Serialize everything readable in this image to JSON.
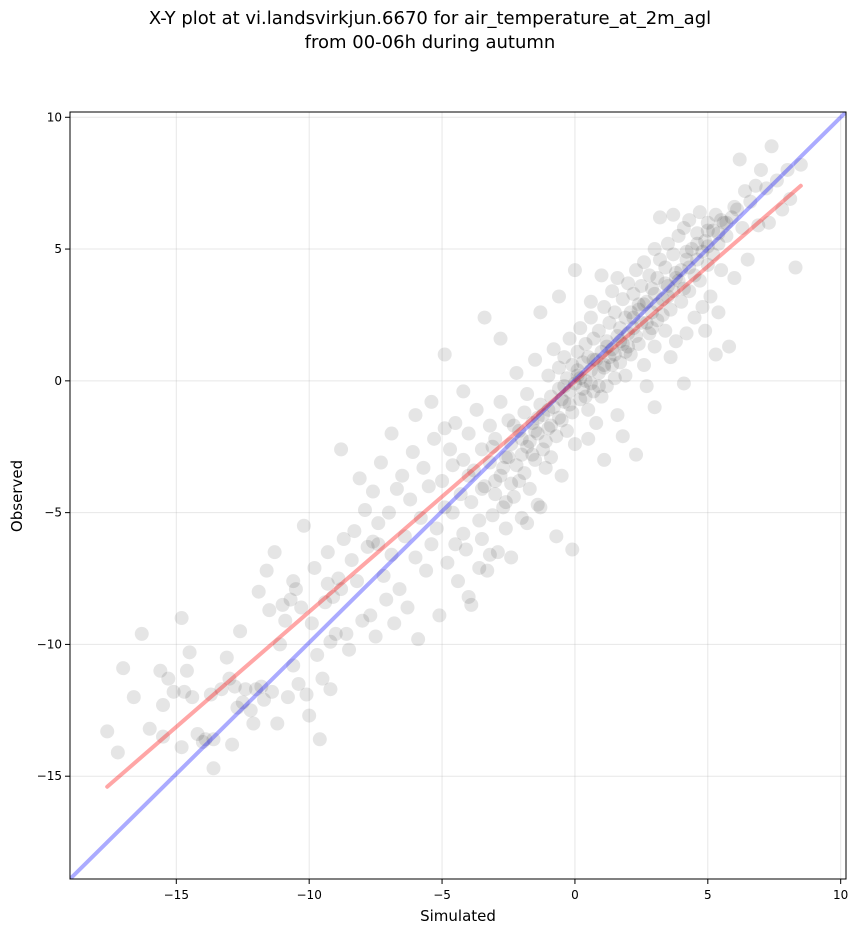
{
  "chart_data": {
    "type": "scatter",
    "title": "X-Y plot at vi.landsvirkjun.6670 for air_temperature_at_2m_agl",
    "subtitle": "from 00-06h during autumn",
    "xlabel": "Simulated",
    "ylabel": "Observed",
    "xlim": [
      -19,
      10.2
    ],
    "ylim": [
      -18.9,
      10.2
    ],
    "xticks": [
      -15,
      -10,
      -5,
      0,
      5,
      10
    ],
    "yticks": [
      -15,
      -10,
      -5,
      0,
      5,
      10
    ],
    "xtick_labels": [
      "−15",
      "−10",
      "−5",
      "0",
      "5",
      "10"
    ],
    "ytick_labels": [
      "−15",
      "−10",
      "−5",
      "0",
      "5",
      "10"
    ],
    "grid": true,
    "point_color": "#000000",
    "points": [
      [
        -17.6,
        -13.3
      ],
      [
        -17.2,
        -14.1
      ],
      [
        -17.0,
        -10.9
      ],
      [
        -16.6,
        -12.0
      ],
      [
        -16.3,
        -9.6
      ],
      [
        -15.6,
        -11.0
      ],
      [
        -15.5,
        -12.3
      ],
      [
        -15.5,
        -13.5
      ],
      [
        -15.3,
        -11.3
      ],
      [
        -15.1,
        -11.8
      ],
      [
        -14.8,
        -13.9
      ],
      [
        -14.8,
        -9.0
      ],
      [
        -14.7,
        -11.8
      ],
      [
        -14.5,
        -10.3
      ],
      [
        -14.4,
        -12.0
      ],
      [
        -14.2,
        -13.4
      ],
      [
        -14.0,
        -13.7
      ],
      [
        -13.7,
        -11.9
      ],
      [
        -13.6,
        -13.6
      ],
      [
        -13.6,
        -14.7
      ],
      [
        -13.3,
        -11.7
      ],
      [
        -13.1,
        -10.5
      ],
      [
        -13.0,
        -11.3
      ],
      [
        -12.9,
        -13.8
      ],
      [
        -12.8,
        -11.6
      ],
      [
        -12.7,
        -12.4
      ],
      [
        -12.6,
        -9.5
      ],
      [
        -12.5,
        -12.2
      ],
      [
        -12.4,
        -11.7
      ],
      [
        -12.2,
        -12.5
      ],
      [
        -12.1,
        -13.0
      ],
      [
        -11.9,
        -8.0
      ],
      [
        -11.8,
        -11.6
      ],
      [
        -11.7,
        -12.1
      ],
      [
        -11.6,
        -7.2
      ],
      [
        -11.5,
        -8.7
      ],
      [
        -11.4,
        -11.8
      ],
      [
        -11.3,
        -6.5
      ],
      [
        -11.2,
        -13.0
      ],
      [
        -11.1,
        -10.0
      ],
      [
        -11.0,
        -8.5
      ],
      [
        -10.9,
        -9.1
      ],
      [
        -10.8,
        -12.0
      ],
      [
        -10.7,
        -8.3
      ],
      [
        -10.6,
        -7.6
      ],
      [
        -10.6,
        -10.8
      ],
      [
        -10.4,
        -11.5
      ],
      [
        -10.3,
        -8.6
      ],
      [
        -10.2,
        -5.5
      ],
      [
        -10.1,
        -11.9
      ],
      [
        -10.0,
        -12.7
      ],
      [
        -9.9,
        -9.2
      ],
      [
        -9.8,
        -7.1
      ],
      [
        -9.7,
        -10.4
      ],
      [
        -9.6,
        -13.6
      ],
      [
        -9.5,
        -11.3
      ],
      [
        -9.4,
        -8.4
      ],
      [
        -9.3,
        -7.7
      ],
      [
        -9.2,
        -9.9
      ],
      [
        -9.2,
        -11.7
      ],
      [
        -9.1,
        -8.2
      ],
      [
        -9.0,
        -9.6
      ],
      [
        -8.9,
        -7.5
      ],
      [
        -8.8,
        -7.9
      ],
      [
        -8.7,
        -6.0
      ],
      [
        -8.6,
        -9.6
      ],
      [
        -8.5,
        -10.2
      ],
      [
        -8.4,
        -6.8
      ],
      [
        -8.3,
        -5.7
      ],
      [
        -8.2,
        -7.6
      ],
      [
        -8.1,
        -3.7
      ],
      [
        -8.0,
        -9.1
      ],
      [
        -7.9,
        -4.9
      ],
      [
        -7.8,
        -6.3
      ],
      [
        -7.7,
        -8.9
      ],
      [
        -7.6,
        -6.1
      ],
      [
        -7.6,
        -4.2
      ],
      [
        -7.5,
        -9.7
      ],
      [
        -7.4,
        -5.4
      ],
      [
        -7.3,
        -3.1
      ],
      [
        -7.2,
        -7.4
      ],
      [
        -7.1,
        -8.3
      ],
      [
        -7.0,
        -5.0
      ],
      [
        -6.9,
        -6.6
      ],
      [
        -6.8,
        -9.2
      ],
      [
        -6.7,
        -4.1
      ],
      [
        -6.6,
        -7.9
      ],
      [
        -6.5,
        -3.6
      ],
      [
        -6.4,
        -5.9
      ],
      [
        -6.3,
        -8.6
      ],
      [
        -6.2,
        -4.5
      ],
      [
        -6.1,
        -2.7
      ],
      [
        -6.0,
        -6.7
      ],
      [
        -5.9,
        -9.8
      ],
      [
        -5.8,
        -5.2
      ],
      [
        -5.7,
        -3.3
      ],
      [
        -5.6,
        -7.2
      ],
      [
        -5.5,
        -4.0
      ],
      [
        -5.4,
        -6.2
      ],
      [
        -5.3,
        -2.2
      ],
      [
        -5.2,
        -5.6
      ],
      [
        -5.1,
        -8.9
      ],
      [
        -5.0,
        -3.8
      ],
      [
        -4.9,
        -4.8
      ],
      [
        -4.8,
        -6.9
      ],
      [
        -4.7,
        -2.6
      ],
      [
        -4.6,
        -5.0
      ],
      [
        -4.5,
        -1.6
      ],
      [
        -4.4,
        -7.6
      ],
      [
        -4.3,
        -4.3
      ],
      [
        -4.2,
        -3.0
      ],
      [
        -4.2,
        -5.8
      ],
      [
        -4.1,
        -6.4
      ],
      [
        -4.0,
        -2.0
      ],
      [
        -3.9,
        -8.5
      ],
      [
        -3.9,
        -4.6
      ],
      [
        -3.8,
        -3.4
      ],
      [
        -3.7,
        -1.1
      ],
      [
        -3.6,
        -5.3
      ],
      [
        -3.5,
        -6.0
      ],
      [
        -3.5,
        -2.6
      ],
      [
        -3.4,
        -4.0
      ],
      [
        -3.3,
        -7.2
      ],
      [
        -3.2,
        -3.1
      ],
      [
        -3.2,
        -1.7
      ],
      [
        -3.1,
        -5.1
      ],
      [
        -3.0,
        -4.3
      ],
      [
        -3.0,
        -2.2
      ],
      [
        -2.9,
        -6.5
      ],
      [
        -2.8,
        -3.6
      ],
      [
        -2.8,
        -0.8
      ],
      [
        -2.7,
        -4.8
      ],
      [
        -2.6,
        -2.9
      ],
      [
        -2.6,
        -5.6
      ],
      [
        -2.5,
        -1.5
      ],
      [
        -2.4,
        -3.9
      ],
      [
        -2.4,
        -2.4
      ],
      [
        -2.3,
        -4.4
      ],
      [
        -2.2,
        0.3
      ],
      [
        -2.2,
        -3.2
      ],
      [
        -2.1,
        -1.9
      ],
      [
        -2.0,
        -5.2
      ],
      [
        -2.0,
        -2.8
      ],
      [
        -1.9,
        -1.2
      ],
      [
        -1.9,
        -3.5
      ],
      [
        -1.8,
        -0.5
      ],
      [
        -1.7,
        -2.3
      ],
      [
        -1.7,
        -4.1
      ],
      [
        -1.6,
        -1.6
      ],
      [
        -1.5,
        -3.0
      ],
      [
        -1.5,
        0.8
      ],
      [
        -1.4,
        -2.0
      ],
      [
        -1.4,
        -4.7
      ],
      [
        -1.3,
        -0.9
      ],
      [
        -1.2,
        -2.6
      ],
      [
        -1.2,
        -1.3
      ],
      [
        -1.1,
        -3.3
      ],
      [
        -1.0,
        0.2
      ],
      [
        -1.0,
        -1.8
      ],
      [
        -0.9,
        -0.6
      ],
      [
        -0.9,
        -2.9
      ],
      [
        -0.8,
        1.2
      ],
      [
        -0.8,
        -1.0
      ],
      [
        -0.7,
        -2.1
      ],
      [
        -0.6,
        0.5
      ],
      [
        -0.6,
        -0.3
      ],
      [
        -0.5,
        -1.5
      ],
      [
        -0.5,
        -3.6
      ],
      [
        -0.4,
        0.9
      ],
      [
        -0.4,
        -0.8
      ],
      [
        -0.3,
        -1.9
      ],
      [
        -0.3,
        0.1
      ],
      [
        -0.2,
        1.6
      ],
      [
        -0.2,
        -0.4
      ],
      [
        -0.1,
        -1.2
      ],
      [
        -0.1,
        0.6
      ],
      [
        0.0,
        -0.1
      ],
      [
        0.0,
        -2.4
      ],
      [
        0.1,
        1.1
      ],
      [
        0.1,
        0.2
      ],
      [
        0.2,
        -0.7
      ],
      [
        0.2,
        2.0
      ],
      [
        0.3,
        0.7
      ],
      [
        0.3,
        -0.3
      ],
      [
        0.4,
        1.4
      ],
      [
        0.4,
        0.0
      ],
      [
        0.5,
        -1.1
      ],
      [
        0.5,
        0.9
      ],
      [
        0.6,
        2.4
      ],
      [
        0.6,
        0.4
      ],
      [
        0.7,
        -0.4
      ],
      [
        0.7,
        1.6
      ],
      [
        0.8,
        0.8
      ],
      [
        0.8,
        -1.6
      ],
      [
        0.9,
        1.9
      ],
      [
        0.9,
        0.3
      ],
      [
        1.0,
        1.1
      ],
      [
        1.0,
        -0.6
      ],
      [
        1.1,
        2.8
      ],
      [
        1.1,
        0.6
      ],
      [
        1.2,
        1.5
      ],
      [
        1.2,
        -0.2
      ],
      [
        1.3,
        2.2
      ],
      [
        1.3,
        0.9
      ],
      [
        1.4,
        3.4
      ],
      [
        1.4,
        1.2
      ],
      [
        1.5,
        0.1
      ],
      [
        1.5,
        2.6
      ],
      [
        1.6,
        1.7
      ],
      [
        1.6,
        -1.3
      ],
      [
        1.7,
        2.0
      ],
      [
        1.7,
        0.7
      ],
      [
        1.8,
        3.1
      ],
      [
        1.8,
        1.4
      ],
      [
        1.9,
        2.4
      ],
      [
        1.9,
        0.2
      ],
      [
        2.0,
        1.8
      ],
      [
        2.0,
        3.7
      ],
      [
        2.1,
        2.6
      ],
      [
        2.1,
        1.0
      ],
      [
        2.2,
        3.3
      ],
      [
        2.2,
        2.0
      ],
      [
        2.3,
        4.2
      ],
      [
        2.3,
        -2.8
      ],
      [
        2.4,
        2.9
      ],
      [
        2.4,
        1.4
      ],
      [
        2.5,
        3.6
      ],
      [
        2.5,
        2.2
      ],
      [
        2.6,
        4.5
      ],
      [
        2.6,
        0.6
      ],
      [
        2.7,
        3.0
      ],
      [
        2.8,
        1.8
      ],
      [
        2.8,
        4.0
      ],
      [
        2.9,
        2.6
      ],
      [
        2.9,
        3.5
      ],
      [
        3.0,
        5.0
      ],
      [
        3.0,
        1.3
      ],
      [
        3.1,
        3.9
      ],
      [
        3.1,
        2.3
      ],
      [
        3.2,
        4.6
      ],
      [
        3.2,
        6.2
      ],
      [
        3.3,
        3.1
      ],
      [
        3.4,
        4.3
      ],
      [
        3.4,
        1.9
      ],
      [
        3.5,
        5.2
      ],
      [
        3.5,
        3.6
      ],
      [
        3.6,
        2.7
      ],
      [
        3.7,
        4.8
      ],
      [
        3.7,
        6.3
      ],
      [
        3.8,
        3.9
      ],
      [
        3.8,
        1.5
      ],
      [
        3.9,
        5.5
      ],
      [
        4.0,
        4.2
      ],
      [
        4.0,
        3.0
      ],
      [
        4.1,
        5.8
      ],
      [
        4.1,
        -0.1
      ],
      [
        4.2,
        4.6
      ],
      [
        4.3,
        3.4
      ],
      [
        4.3,
        6.1
      ],
      [
        4.4,
        5.0
      ],
      [
        4.5,
        2.4
      ],
      [
        4.5,
        4.0
      ],
      [
        4.6,
        5.6
      ],
      [
        4.7,
        3.8
      ],
      [
        4.7,
        6.4
      ],
      [
        4.8,
        4.9
      ],
      [
        4.9,
        1.9
      ],
      [
        4.9,
        5.3
      ],
      [
        5.0,
        6.0
      ],
      [
        5.0,
        4.4
      ],
      [
        5.1,
        3.2
      ],
      [
        5.2,
        5.7
      ],
      [
        5.2,
        4.8
      ],
      [
        5.3,
        6.3
      ],
      [
        5.4,
        2.6
      ],
      [
        5.4,
        5.2
      ],
      [
        5.5,
        4.2
      ],
      [
        5.6,
        6.0
      ],
      [
        5.7,
        5.5
      ],
      [
        5.8,
        1.3
      ],
      [
        5.9,
        6.2
      ],
      [
        6.0,
        3.9
      ],
      [
        6.1,
        6.5
      ],
      [
        6.2,
        8.4
      ],
      [
        6.3,
        5.8
      ],
      [
        6.4,
        7.2
      ],
      [
        6.5,
        4.6
      ],
      [
        6.6,
        6.8
      ],
      [
        6.8,
        7.4
      ],
      [
        6.9,
        5.9
      ],
      [
        7.0,
        8.0
      ],
      [
        7.2,
        7.3
      ],
      [
        7.3,
        6.0
      ],
      [
        7.4,
        8.9
      ],
      [
        7.6,
        7.6
      ],
      [
        7.8,
        6.5
      ],
      [
        8.0,
        8.0
      ],
      [
        8.1,
        6.9
      ],
      [
        8.3,
        4.3
      ],
      [
        8.5,
        8.2
      ],
      [
        -8.8,
        -2.6
      ],
      [
        -9.3,
        -6.5
      ],
      [
        -12.0,
        -11.7
      ],
      [
        -13.9,
        -13.6
      ],
      [
        -16.0,
        -13.2
      ],
      [
        -14.6,
        -11.0
      ],
      [
        -10.5,
        -7.9
      ],
      [
        -7.4,
        -6.2
      ],
      [
        -6.9,
        -2.0
      ],
      [
        -6.0,
        -1.3
      ],
      [
        -5.4,
        -0.8
      ],
      [
        -4.9,
        -1.8
      ],
      [
        -4.5,
        -6.2
      ],
      [
        -4.0,
        -8.2
      ],
      [
        -3.6,
        -7.1
      ],
      [
        -3.2,
        -6.6
      ],
      [
        -2.4,
        -6.7
      ],
      [
        -1.8,
        -5.4
      ],
      [
        -1.3,
        -4.8
      ],
      [
        -0.7,
        -5.9
      ],
      [
        -0.1,
        -6.4
      ],
      [
        0.5,
        -2.2
      ],
      [
        1.1,
        -3.0
      ],
      [
        1.8,
        -2.1
      ],
      [
        2.7,
        -0.2
      ],
      [
        3.0,
        -1.0
      ],
      [
        3.6,
        0.9
      ],
      [
        4.2,
        1.8
      ],
      [
        4.8,
        2.8
      ],
      [
        5.3,
        1.0
      ],
      [
        -1.3,
        2.6
      ],
      [
        -0.6,
        3.2
      ],
      [
        0.0,
        4.2
      ],
      [
        0.6,
        3.0
      ],
      [
        1.0,
        4.0
      ],
      [
        1.6,
        3.9
      ],
      [
        -2.8,
        1.6
      ],
      [
        -3.4,
        2.4
      ],
      [
        -4.2,
        -0.4
      ],
      [
        -4.9,
        1.0
      ],
      [
        -2.6,
        -4.6
      ],
      [
        -2.1,
        -3.8
      ],
      [
        -1.6,
        -2.8
      ],
      [
        -1.1,
        -2.3
      ],
      [
        -0.6,
        -1.4
      ],
      [
        -0.2,
        -0.9
      ],
      [
        0.4,
        -0.6
      ],
      [
        0.9,
        -0.2
      ],
      [
        1.4,
        0.6
      ],
      [
        1.9,
        1.1
      ],
      [
        2.3,
        1.7
      ],
      [
        2.7,
        2.2
      ],
      [
        3.1,
        2.9
      ],
      [
        3.5,
        3.2
      ],
      [
        3.9,
        3.8
      ],
      [
        4.3,
        4.3
      ],
      [
        4.6,
        4.6
      ],
      [
        5.0,
        5.1
      ],
      [
        5.4,
        5.6
      ],
      [
        5.7,
        6.0
      ],
      [
        -3.0,
        -3.8
      ],
      [
        -2.5,
        -2.9
      ],
      [
        -2.0,
        -2.2
      ],
      [
        -1.5,
        -1.9
      ],
      [
        -1.0,
        -1.1
      ],
      [
        -0.5,
        -0.7
      ],
      [
        0.2,
        0.1
      ],
      [
        0.7,
        0.8
      ],
      [
        1.2,
        1.3
      ],
      [
        1.7,
        1.5
      ],
      [
        2.2,
        2.4
      ],
      [
        2.6,
        2.9
      ],
      [
        3.0,
        3.3
      ],
      [
        3.4,
        3.7
      ],
      [
        3.8,
        4.1
      ],
      [
        4.2,
        4.9
      ],
      [
        4.6,
        5.2
      ],
      [
        5.0,
        5.7
      ],
      [
        5.5,
        6.1
      ],
      [
        6.0,
        6.6
      ],
      [
        -4.6,
        -3.2
      ],
      [
        -4.0,
        -3.6
      ],
      [
        -3.5,
        -4.1
      ],
      [
        -3.1,
        -2.5
      ],
      [
        -2.7,
        -3.3
      ],
      [
        -2.3,
        -1.7
      ],
      [
        -1.8,
        -2.5
      ],
      [
        -1.4,
        -1.4
      ],
      [
        -0.9,
        -1.7
      ],
      [
        -0.4,
        -0.2
      ],
      [
        0.1,
        0.4
      ],
      [
        0.6,
        -0.1
      ],
      [
        1.1,
        0.5
      ],
      [
        1.5,
        1.0
      ],
      [
        2.0,
        1.3
      ],
      [
        2.4,
        2.7
      ],
      [
        2.9,
        2.0
      ],
      [
        3.3,
        2.5
      ],
      [
        3.7,
        3.4
      ],
      [
        4.1,
        3.5
      ]
    ],
    "lines": [
      {
        "color": "#0000ff",
        "opacity": 0.33,
        "x": [
          -19,
          10.2
        ],
        "y": [
          -18.9,
          10.2
        ]
      },
      {
        "color": "#ff0000",
        "opacity": 0.35,
        "x": [
          -17.6,
          8.5
        ],
        "y": [
          -15.4,
          7.4
        ]
      }
    ]
  }
}
